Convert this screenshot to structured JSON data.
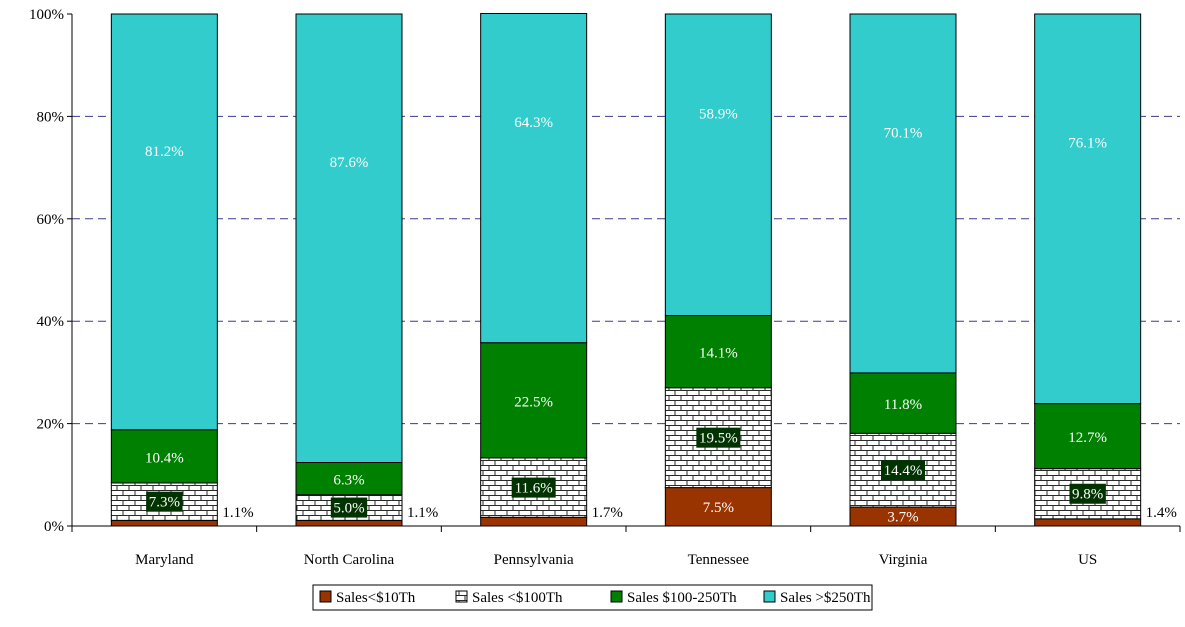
{
  "chart_data": {
    "type": "bar",
    "stacked": true,
    "categories": [
      "Maryland",
      "North Carolina",
      "Pennsylvania",
      "Tennessee",
      "Virginia",
      "US"
    ],
    "series": [
      {
        "name": "Sales<$10Th",
        "values": [
          1.1,
          1.1,
          1.7,
          7.5,
          3.7,
          1.4
        ],
        "labels": [
          "1.1%",
          "1.1%",
          "1.7%",
          "7.5%",
          "3.7%",
          "1.4%"
        ],
        "color": "#993300"
      },
      {
        "name": "Sales <$100Th",
        "values": [
          7.3,
          5.0,
          11.6,
          19.5,
          14.4,
          9.8
        ],
        "labels": [
          "7.3%",
          "5.0%",
          "11.6%",
          "19.5%",
          "14.4%",
          "9.8%"
        ],
        "color": "#ffffff"
      },
      {
        "name": "Sales $100-250Th",
        "values": [
          10.4,
          6.3,
          22.5,
          14.1,
          11.8,
          12.7
        ],
        "labels": [
          "10.4%",
          "6.3%",
          "22.5%",
          "14.1%",
          "11.8%",
          "12.7%"
        ],
        "color": "#008000"
      },
      {
        "name": "Sales >$250Th",
        "values": [
          81.2,
          87.6,
          64.3,
          58.9,
          70.1,
          76.1
        ],
        "labels": [
          "81.2%",
          "87.6%",
          "64.3%",
          "58.9%",
          "70.1%",
          "76.1%"
        ],
        "color": "#33cccc"
      }
    ],
    "yticks": [
      "0%",
      "20%",
      "40%",
      "60%",
      "80%",
      "100%"
    ],
    "ylim": [
      0,
      100
    ],
    "grid": true,
    "legend_position": "bottom"
  }
}
